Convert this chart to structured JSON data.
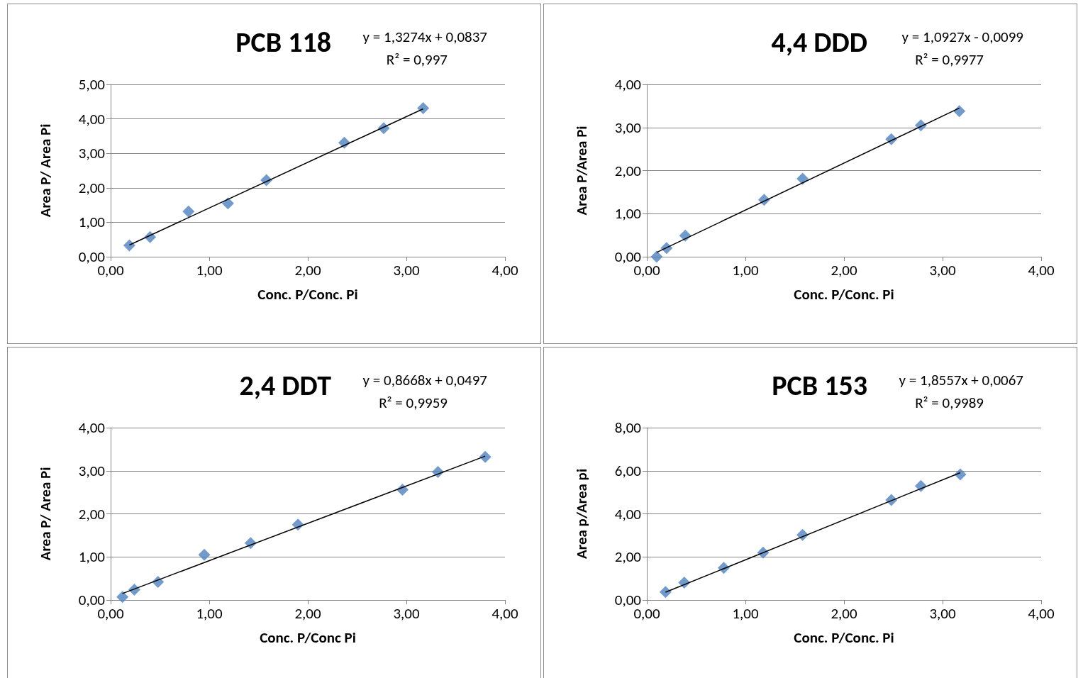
{
  "chart_data": [
    {
      "type": "scatter",
      "title": "PCB 118",
      "xlabel": "Conc. P/Conc. Pi",
      "ylabel": "Area P/ Area Pi",
      "annotations": [
        "y = 1,3274x + 0,0837",
        "R² = 0,997"
      ],
      "grid": "y",
      "xlim": [
        0,
        4
      ],
      "xticks": [
        {
          "value": 0,
          "label": "0,00"
        },
        {
          "value": 1,
          "label": "1,00"
        },
        {
          "value": 2,
          "label": "2,00"
        },
        {
          "value": 3,
          "label": "3,00"
        },
        {
          "value": 4,
          "label": "4,00"
        }
      ],
      "ylim": [
        0,
        5
      ],
      "yticks": [
        {
          "value": 0,
          "label": "0,00"
        },
        {
          "value": 1,
          "label": "1,00"
        },
        {
          "value": 2,
          "label": "2,00"
        },
        {
          "value": 3,
          "label": "3,00"
        },
        {
          "value": 4,
          "label": "4,00"
        },
        {
          "value": 5,
          "label": "5,00"
        }
      ],
      "series": [
        {
          "marker": "diamond",
          "color": "#4f81bd",
          "x": [
            0.19,
            0.4,
            0.79,
            1.19,
            1.58,
            2.37,
            2.77,
            3.17
          ],
          "values": [
            0.33,
            0.57,
            1.31,
            1.55,
            2.22,
            3.31,
            3.73,
            4.31
          ]
        },
        {
          "type": "line",
          "marker": "none",
          "color": "#000000",
          "x": [
            0.19,
            3.17
          ],
          "values": [
            0.34,
            4.29
          ]
        }
      ]
    },
    {
      "type": "scatter",
      "title": "4,4 DDD",
      "xlabel": "Conc. P/Conc. Pi",
      "ylabel": "Area P/Area Pi",
      "annotations": [
        "y = 1,0927x - 0,0099",
        "R² = 0,9977"
      ],
      "grid": "y",
      "xlim": [
        0,
        4
      ],
      "xticks": [
        {
          "value": 0,
          "label": "0,00"
        },
        {
          "value": 1,
          "label": "1,00"
        },
        {
          "value": 2,
          "label": "2,00"
        },
        {
          "value": 3,
          "label": "3,00"
        },
        {
          "value": 4,
          "label": "4,00"
        }
      ],
      "ylim": [
        0,
        4
      ],
      "yticks": [
        {
          "value": 0,
          "label": "0,00"
        },
        {
          "value": 1,
          "label": "1,00"
        },
        {
          "value": 2,
          "label": "2,00"
        },
        {
          "value": 3,
          "label": "3,00"
        },
        {
          "value": 4,
          "label": "4,00"
        }
      ],
      "series": [
        {
          "marker": "diamond",
          "color": "#4f81bd",
          "x": [
            0.1,
            0.2,
            0.39,
            1.19,
            1.58,
            2.48,
            2.78,
            3.17
          ],
          "values": [
            0.0,
            0.2,
            0.49,
            1.32,
            1.81,
            2.73,
            3.05,
            3.38
          ]
        },
        {
          "type": "line",
          "marker": "none",
          "color": "#000000",
          "x": [
            0.1,
            3.17
          ],
          "values": [
            0.1,
            3.45
          ]
        }
      ]
    },
    {
      "type": "scatter",
      "title": "2,4 DDT",
      "xlabel": "Conc. P/Conc Pi",
      "ylabel": "Area P/ Area Pi",
      "annotations": [
        "y = 0,8668x + 0,0497",
        "R² = 0,9959"
      ],
      "grid": "y",
      "xlim": [
        0,
        4
      ],
      "xticks": [
        {
          "value": 0,
          "label": "0,00"
        },
        {
          "value": 1,
          "label": "1,00"
        },
        {
          "value": 2,
          "label": "2,00"
        },
        {
          "value": 3,
          "label": "3,00"
        },
        {
          "value": 4,
          "label": "4,00"
        }
      ],
      "ylim": [
        0,
        4
      ],
      "yticks": [
        {
          "value": 0,
          "label": "0,00"
        },
        {
          "value": 1,
          "label": "1,00"
        },
        {
          "value": 2,
          "label": "2,00"
        },
        {
          "value": 3,
          "label": "3,00"
        },
        {
          "value": 4,
          "label": "4,00"
        }
      ],
      "series": [
        {
          "marker": "diamond",
          "color": "#4f81bd",
          "x": [
            0.12,
            0.24,
            0.48,
            0.95,
            1.42,
            1.9,
            2.96,
            3.32,
            3.8
          ],
          "values": [
            0.07,
            0.24,
            0.42,
            1.05,
            1.32,
            1.75,
            2.56,
            2.97,
            3.32
          ]
        },
        {
          "type": "line",
          "marker": "none",
          "color": "#000000",
          "x": [
            0.12,
            3.8
          ],
          "values": [
            0.15,
            3.34
          ]
        }
      ]
    },
    {
      "type": "scatter",
      "title": "PCB 153",
      "xlabel": "Conc. P/Conc. Pi",
      "ylabel": "Area p/Area pi",
      "annotations": [
        "y = 1,8557x + 0,0067",
        "R² = 0,9989"
      ],
      "grid": "y",
      "xlim": [
        0,
        4
      ],
      "xticks": [
        {
          "value": 0,
          "label": "0,00"
        },
        {
          "value": 1,
          "label": "1,00"
        },
        {
          "value": 2,
          "label": "2,00"
        },
        {
          "value": 3,
          "label": "3,00"
        },
        {
          "value": 4,
          "label": "4,00"
        }
      ],
      "ylim": [
        0,
        8
      ],
      "yticks": [
        {
          "value": 0,
          "label": "0,00"
        },
        {
          "value": 2,
          "label": "2,00"
        },
        {
          "value": 4,
          "label": "4,00"
        },
        {
          "value": 6,
          "label": "6,00"
        },
        {
          "value": 8,
          "label": "8,00"
        }
      ],
      "series": [
        {
          "marker": "diamond",
          "color": "#4f81bd",
          "x": [
            0.19,
            0.38,
            0.78,
            1.18,
            1.58,
            2.48,
            2.78,
            3.18
          ],
          "values": [
            0.37,
            0.81,
            1.49,
            2.2,
            3.02,
            4.64,
            5.29,
            5.83
          ]
        },
        {
          "type": "line",
          "marker": "none",
          "color": "#000000",
          "x": [
            0.19,
            3.18
          ],
          "values": [
            0.36,
            5.91
          ]
        }
      ]
    }
  ]
}
